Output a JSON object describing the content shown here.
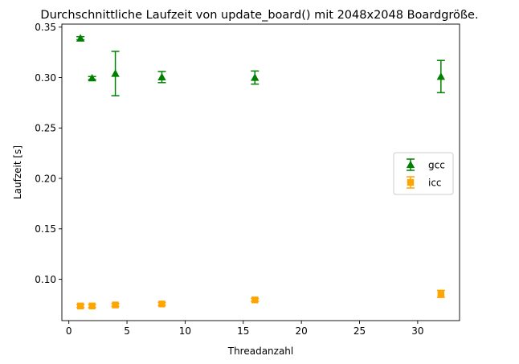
{
  "chart_data": {
    "type": "scatter",
    "title": "Durchschnittliche Laufzeit von update_board() mit 2048x2048 Boardgröße.",
    "xlabel": "Threadanzahl",
    "ylabel": "Laufzeit [s]",
    "xlim": [
      -0.6,
      33.6
    ],
    "ylim": [
      0.059,
      0.353
    ],
    "xticks": [
      0,
      5,
      10,
      15,
      20,
      25,
      30
    ],
    "xtick_labels": [
      "0",
      "5",
      "10",
      "15",
      "20",
      "25",
      "30"
    ],
    "yticks": [
      0.1,
      0.15,
      0.2,
      0.25,
      0.3,
      0.35
    ],
    "ytick_labels": [
      "0.10",
      "0.15",
      "0.20",
      "0.25",
      "0.30",
      "0.35"
    ],
    "grid": false,
    "legend_position": "center-right",
    "series": [
      {
        "name": "gcc",
        "color": "#008000",
        "marker": "triangle",
        "x": [
          1,
          2,
          4,
          8,
          16,
          32
        ],
        "y": [
          0.339,
          0.2995,
          0.304,
          0.3005,
          0.3,
          0.301
        ],
        "err": [
          0.0015,
          0.0015,
          0.022,
          0.0055,
          0.0065,
          0.016
        ]
      },
      {
        "name": "icc",
        "color": "#FFA500",
        "marker": "square",
        "x": [
          1,
          2,
          4,
          8,
          16,
          32
        ],
        "y": [
          0.0735,
          0.0735,
          0.0745,
          0.0755,
          0.0795,
          0.0855
        ],
        "err": [
          0.0015,
          0.0015,
          0.0015,
          0.0015,
          0.0015,
          0.0035
        ]
      }
    ]
  }
}
